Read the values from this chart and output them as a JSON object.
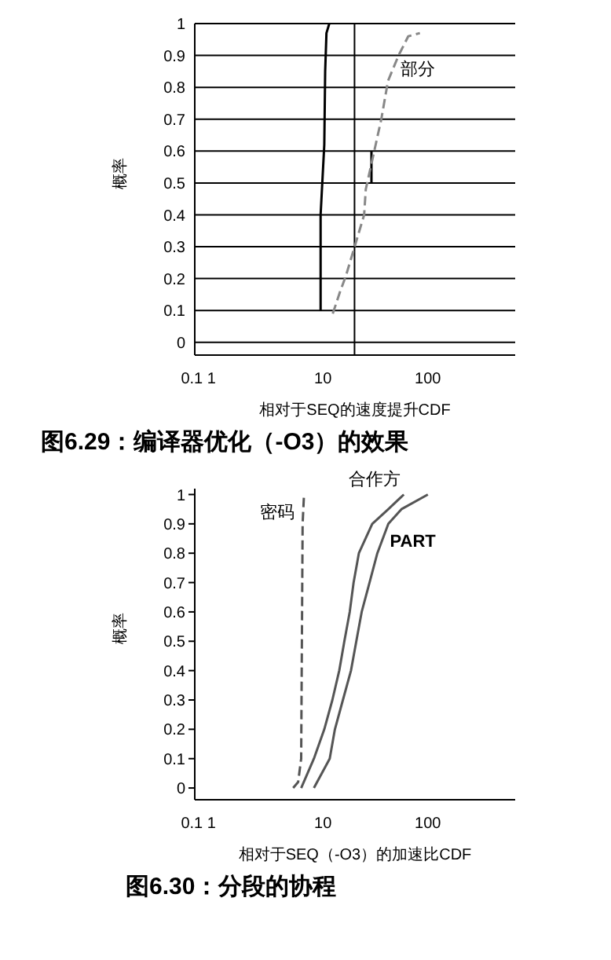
{
  "chart_data": [
    {
      "type": "line",
      "title": "图6.29：编译器优化（-O3）的效果",
      "xlabel": "相对于SEQ的速度提升CDF",
      "ylabel": "概率",
      "log": "x",
      "grid": "y",
      "marker": "none",
      "xlim": [
        0.6,
        680
      ],
      "xticks": [
        {
          "value": 0.65,
          "label": "0.1 1"
        },
        {
          "value": 10,
          "label": "10"
        },
        {
          "value": 100,
          "label": "100"
        }
      ],
      "ylim": [
        -0.04,
        1
      ],
      "yticks": [
        0,
        0.1,
        0.2,
        0.3,
        0.4,
        0.5,
        0.6,
        0.7,
        0.8,
        0.9,
        1
      ],
      "ref_lines": [
        {
          "axis": "x",
          "value": 20,
          "color": "#000000"
        }
      ],
      "series": [
        {
          "color": "#000000",
          "line_style": "solid",
          "x": [
            9.5,
            9.5,
            10.3,
            10.5,
            10.8,
            11.5
          ],
          "values": [
            0.1,
            0.4,
            0.62,
            0.85,
            0.97,
            1
          ]
        },
        {
          "color": "#000000",
          "line_style": "solid",
          "x": [
            29,
            29
          ],
          "values": [
            0.5,
            0.6
          ]
        },
        {
          "name": "部分",
          "color": "#888888",
          "line_style": "dashed",
          "x": [
            12.4,
            14.6,
            16.6,
            24.7,
            25.6,
            36,
            41.7,
            52.6,
            65,
            84
          ],
          "values": [
            0.09,
            0.16,
            0.21,
            0.4,
            0.48,
            0.7,
            0.82,
            0.9,
            0.96,
            0.97
          ]
        }
      ]
    },
    {
      "type": "line",
      "title": "图6.30：分段的协程",
      "xlabel": "相对于SEQ（-O3）的加速比CDF",
      "ylabel": "概率",
      "log": "x",
      "grid": false,
      "marker": "none",
      "xlim": [
        0.6,
        680
      ],
      "xticks": [
        {
          "value": 0.65,
          "label": "0.1 1"
        },
        {
          "value": 10,
          "label": "10"
        },
        {
          "value": 100,
          "label": "100"
        }
      ],
      "ylim": [
        -0.04,
        1.02
      ],
      "yticks": [
        0,
        0.1,
        0.2,
        0.3,
        0.4,
        0.5,
        0.6,
        0.7,
        0.8,
        0.9,
        1
      ],
      "series": [
        {
          "name": "密码",
          "color": "#555555",
          "line_style": "dashed",
          "x": [
            5.2,
            5.8,
            6.2,
            6.3,
            6.4,
            6.6
          ],
          "values": [
            0,
            0.02,
            0.1,
            0.5,
            0.9,
            1
          ]
        },
        {
          "name": "合作方",
          "color": "#555555",
          "line_style": "solid",
          "x": [
            6.2,
            8.2,
            10.3,
            12.3,
            14.3,
            16,
            18,
            19.6,
            22,
            29.5,
            42,
            59
          ],
          "values": [
            0,
            0.1,
            0.2,
            0.3,
            0.4,
            0.5,
            0.6,
            0.7,
            0.8,
            0.9,
            0.95,
            1
          ]
        },
        {
          "name": "PART",
          "color": "#555555",
          "line_style": "solid",
          "x": [
            8.2,
            11.6,
            13,
            15.5,
            18.5,
            20.8,
            23.4,
            27.8,
            33,
            42,
            56,
            100
          ],
          "values": [
            0,
            0.1,
            0.2,
            0.3,
            0.4,
            0.5,
            0.6,
            0.7,
            0.8,
            0.9,
            0.95,
            1
          ]
        }
      ]
    }
  ]
}
